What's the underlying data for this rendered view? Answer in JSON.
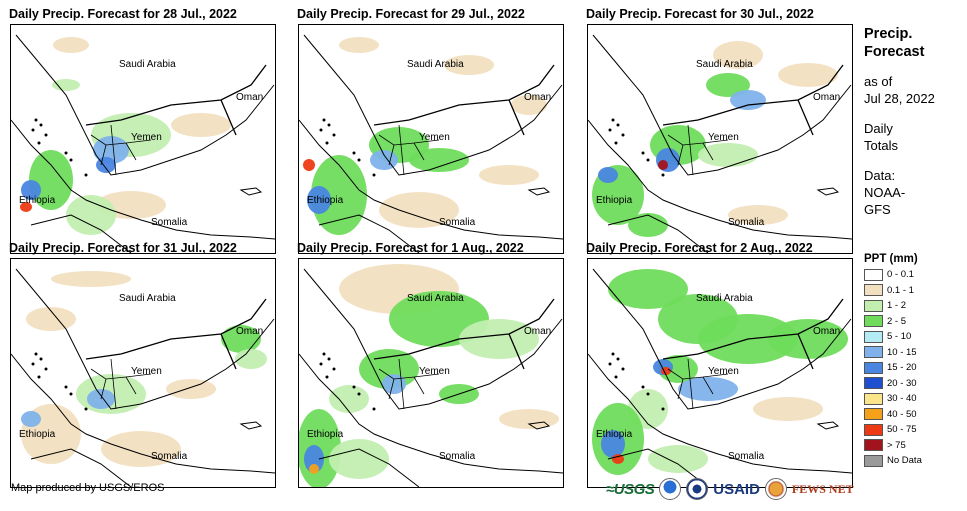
{
  "panels": [
    {
      "title": "Daily Precip. Forecast for 28 Jul., 2022"
    },
    {
      "title": "Daily Precip. Forecast for 29 Jul., 2022"
    },
    {
      "title": "Daily Precip. Forecast for 30 Jul., 2022"
    },
    {
      "title": "Daily Precip. Forecast for 31 Jul., 2022"
    },
    {
      "title": "Daily Precip. Forecast for 1 Aug., 2022"
    },
    {
      "title": "Daily Precip. Forecast for 2 Aug., 2022"
    }
  ],
  "map_labels": {
    "saudi": "Saudi Arabia",
    "oman": "Oman",
    "yemen": "Yemen",
    "ethiopia": "Ethiopia",
    "somalia": "Somalia"
  },
  "side": {
    "title_line1": "Precip.",
    "title_line2": "Forecast",
    "asof_line1": "as of",
    "asof_line2": "Jul 28, 2022",
    "daily_line1": "Daily",
    "daily_line2": "Totals",
    "source_line1": "Data:",
    "source_line2": "NOAA-",
    "source_line3": "GFS"
  },
  "legend": {
    "title": "PPT (mm)",
    "items": [
      {
        "label": "0 - 0.1",
        "color": "#ffffff"
      },
      {
        "label": "0.1 - 1",
        "color": "#f2dfc0"
      },
      {
        "label": "1 - 2",
        "color": "#c2eeb0"
      },
      {
        "label": "2 - 5",
        "color": "#6fdc5c"
      },
      {
        "label": "5 - 10",
        "color": "#b3ecf5"
      },
      {
        "label": "10 - 15",
        "color": "#7fb2ea"
      },
      {
        "label": "15 - 20",
        "color": "#4a86e0"
      },
      {
        "label": "20 - 30",
        "color": "#1f4fd1"
      },
      {
        "label": "30 - 40",
        "color": "#fbe58a"
      },
      {
        "label": "40 - 50",
        "color": "#f5a21a"
      },
      {
        "label": "50 - 75",
        "color": "#ee3a14"
      },
      {
        "label": "> 75",
        "color": "#a3131b"
      },
      {
        "label": "No Data",
        "color": "#9a9a9a"
      }
    ]
  },
  "footer": {
    "credit": "Map produced by USGS/EROS",
    "logo_usgs": "≈USGS",
    "logo_usaid": "USAID",
    "logo_fews": "FEWS NET"
  }
}
